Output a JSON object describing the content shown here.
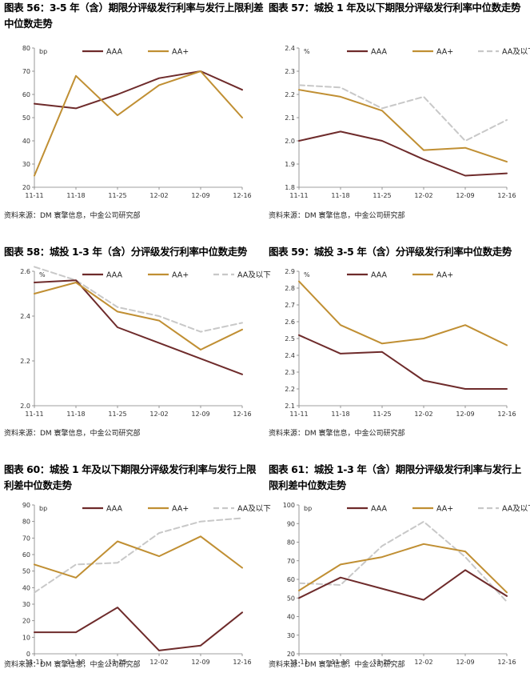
{
  "colors": {
    "AAA": "#6e2b2b",
    "AA+": "#c08f33",
    "AA及以下": "#c8c8c8",
    "axis": "#7f7f7f"
  },
  "charts": [
    {
      "title": "图表 56：3-5 年（含）期限分评级发行利率与发行上限利差中位数走势",
      "source": "资料来源：DM 寰擎信息，中金公司研究部",
      "chart_data": {
        "type": "line",
        "unit": "bp",
        "categories": [
          "11-11",
          "11-18",
          "11-25",
          "12-02",
          "12-09",
          "12-16"
        ],
        "ylim": [
          20,
          80
        ],
        "yticks": [
          20,
          30,
          40,
          50,
          60,
          70,
          80
        ],
        "ytick_labels": [
          "20",
          "30",
          "40",
          "50",
          "60",
          "70",
          "80"
        ],
        "series": [
          {
            "name": "AAA",
            "values": [
              56,
              54,
              60,
              67,
              70,
              62
            ]
          },
          {
            "name": "AA+",
            "values": [
              25,
              68,
              51,
              64,
              70,
              50
            ]
          }
        ]
      }
    },
    {
      "title": "图表 57：城投 1 年及以下期限分评级发行利率中位数走势",
      "source": "资料来源：DM 寰擎信息，中金公司研究部",
      "chart_data": {
        "type": "line",
        "unit": "%",
        "categories": [
          "11-11",
          "11-18",
          "11-25",
          "12-02",
          "12-09",
          "12-16"
        ],
        "ylim": [
          1.8,
          2.4
        ],
        "yticks": [
          1.8,
          1.9,
          2.0,
          2.1,
          2.2,
          2.3,
          2.4
        ],
        "ytick_labels": [
          "1.8",
          "1.9",
          "2.0",
          "2.1",
          "2.2",
          "2.3",
          "2.4"
        ],
        "series": [
          {
            "name": "AAA",
            "values": [
              2.0,
              2.04,
              2.0,
              1.92,
              1.85,
              1.86
            ]
          },
          {
            "name": "AA+",
            "values": [
              2.22,
              2.19,
              2.13,
              1.96,
              1.97,
              1.91
            ]
          },
          {
            "name": "AA及以下",
            "values": [
              2.24,
              2.23,
              2.14,
              2.19,
              2.0,
              2.09
            ]
          }
        ]
      }
    },
    {
      "title": "图表 58：城投 1-3 年（含）分评级发行利率中位数走势",
      "source": "资料来源：DM 寰擎信息，中金公司研究部",
      "chart_data": {
        "type": "line",
        "unit": "%",
        "categories": [
          "11-11",
          "11-18",
          "11-25",
          "12-02",
          "12-09",
          "12-16"
        ],
        "ylim": [
          2.0,
          2.6
        ],
        "yticks": [
          2.0,
          2.2,
          2.4,
          2.6
        ],
        "ytick_labels": [
          "2.0",
          "2.2",
          "2.4",
          "2.6"
        ],
        "series": [
          {
            "name": "AAA",
            "values": [
              2.55,
              2.56,
              2.35,
              2.28,
              2.21,
              2.14
            ]
          },
          {
            "name": "AA+",
            "values": [
              2.5,
              2.55,
              2.42,
              2.38,
              2.25,
              2.34
            ]
          },
          {
            "name": "AA及以下",
            "values": [
              2.62,
              2.56,
              2.44,
              2.4,
              2.33,
              2.37
            ]
          }
        ]
      }
    },
    {
      "title": "图表 59：城投 3-5 年（含）分评级发行利率中位数走势",
      "source": "资料来源：DM 寰擎信息，中金公司研究部",
      "chart_data": {
        "type": "line",
        "unit": "%",
        "categories": [
          "11-11",
          "11-18",
          "11-25",
          "12-02",
          "12-09",
          "12-16"
        ],
        "ylim": [
          2.1,
          2.9
        ],
        "yticks": [
          2.1,
          2.2,
          2.3,
          2.4,
          2.5,
          2.6,
          2.7,
          2.8,
          2.9
        ],
        "ytick_labels": [
          "2.1",
          "2.2",
          "2.3",
          "2.4",
          "2.5",
          "2.6",
          "2.7",
          "2.8",
          "2.9"
        ],
        "series": [
          {
            "name": "AAA",
            "values": [
              2.52,
              2.41,
              2.42,
              2.25,
              2.2,
              2.2
            ]
          },
          {
            "name": "AA+",
            "values": [
              2.84,
              2.58,
              2.47,
              2.5,
              2.58,
              2.46
            ]
          }
        ]
      }
    },
    {
      "title": "图表 60：城投 1 年及以下期限分评级发行利率与发行上限利差中位数走势",
      "source": "资料来源：DM 寰擎信息，中金公司研究部",
      "chart_data": {
        "type": "line",
        "unit": "bp",
        "categories": [
          "11-11",
          "11-18",
          "11-25",
          "12-02",
          "12-09",
          "12-16"
        ],
        "ylim": [
          0,
          90
        ],
        "yticks": [
          0,
          10,
          20,
          30,
          40,
          50,
          60,
          70,
          80,
          90
        ],
        "ytick_labels": [
          "0",
          "10",
          "20",
          "30",
          "40",
          "50",
          "60",
          "70",
          "80",
          "90"
        ],
        "series": [
          {
            "name": "AAA",
            "values": [
              13,
              13,
              28,
              2,
              5,
              25
            ]
          },
          {
            "name": "AA+",
            "values": [
              54,
              46,
              68,
              59,
              71,
              52
            ]
          },
          {
            "name": "AA及以下",
            "values": [
              37,
              54,
              55,
              73,
              80,
              82
            ]
          }
        ]
      }
    },
    {
      "title": "图表 61：城投 1-3 年（含）期限分评级发行利率与发行上限利差中位数走势",
      "source": "资料来源：DM 寰擎信息，中金公司研究部",
      "chart_data": {
        "type": "line",
        "unit": "bp",
        "categories": [
          "11-11",
          "11-18",
          "11-25",
          "12-02",
          "12-09",
          "12-16"
        ],
        "ylim": [
          20,
          100
        ],
        "yticks": [
          20,
          30,
          40,
          50,
          60,
          70,
          80,
          90,
          100
        ],
        "ytick_labels": [
          "20",
          "30",
          "40",
          "50",
          "60",
          "70",
          "80",
          "90",
          "100"
        ],
        "series": [
          {
            "name": "AAA",
            "values": [
              50,
              61,
              55,
              49,
              65,
              51
            ]
          },
          {
            "name": "AA+",
            "values": [
              54,
              68,
              72,
              79,
              75,
              53
            ]
          },
          {
            "name": "AA及以下",
            "values": [
              58,
              57,
              78,
              91,
              72,
              48
            ]
          }
        ]
      }
    }
  ]
}
